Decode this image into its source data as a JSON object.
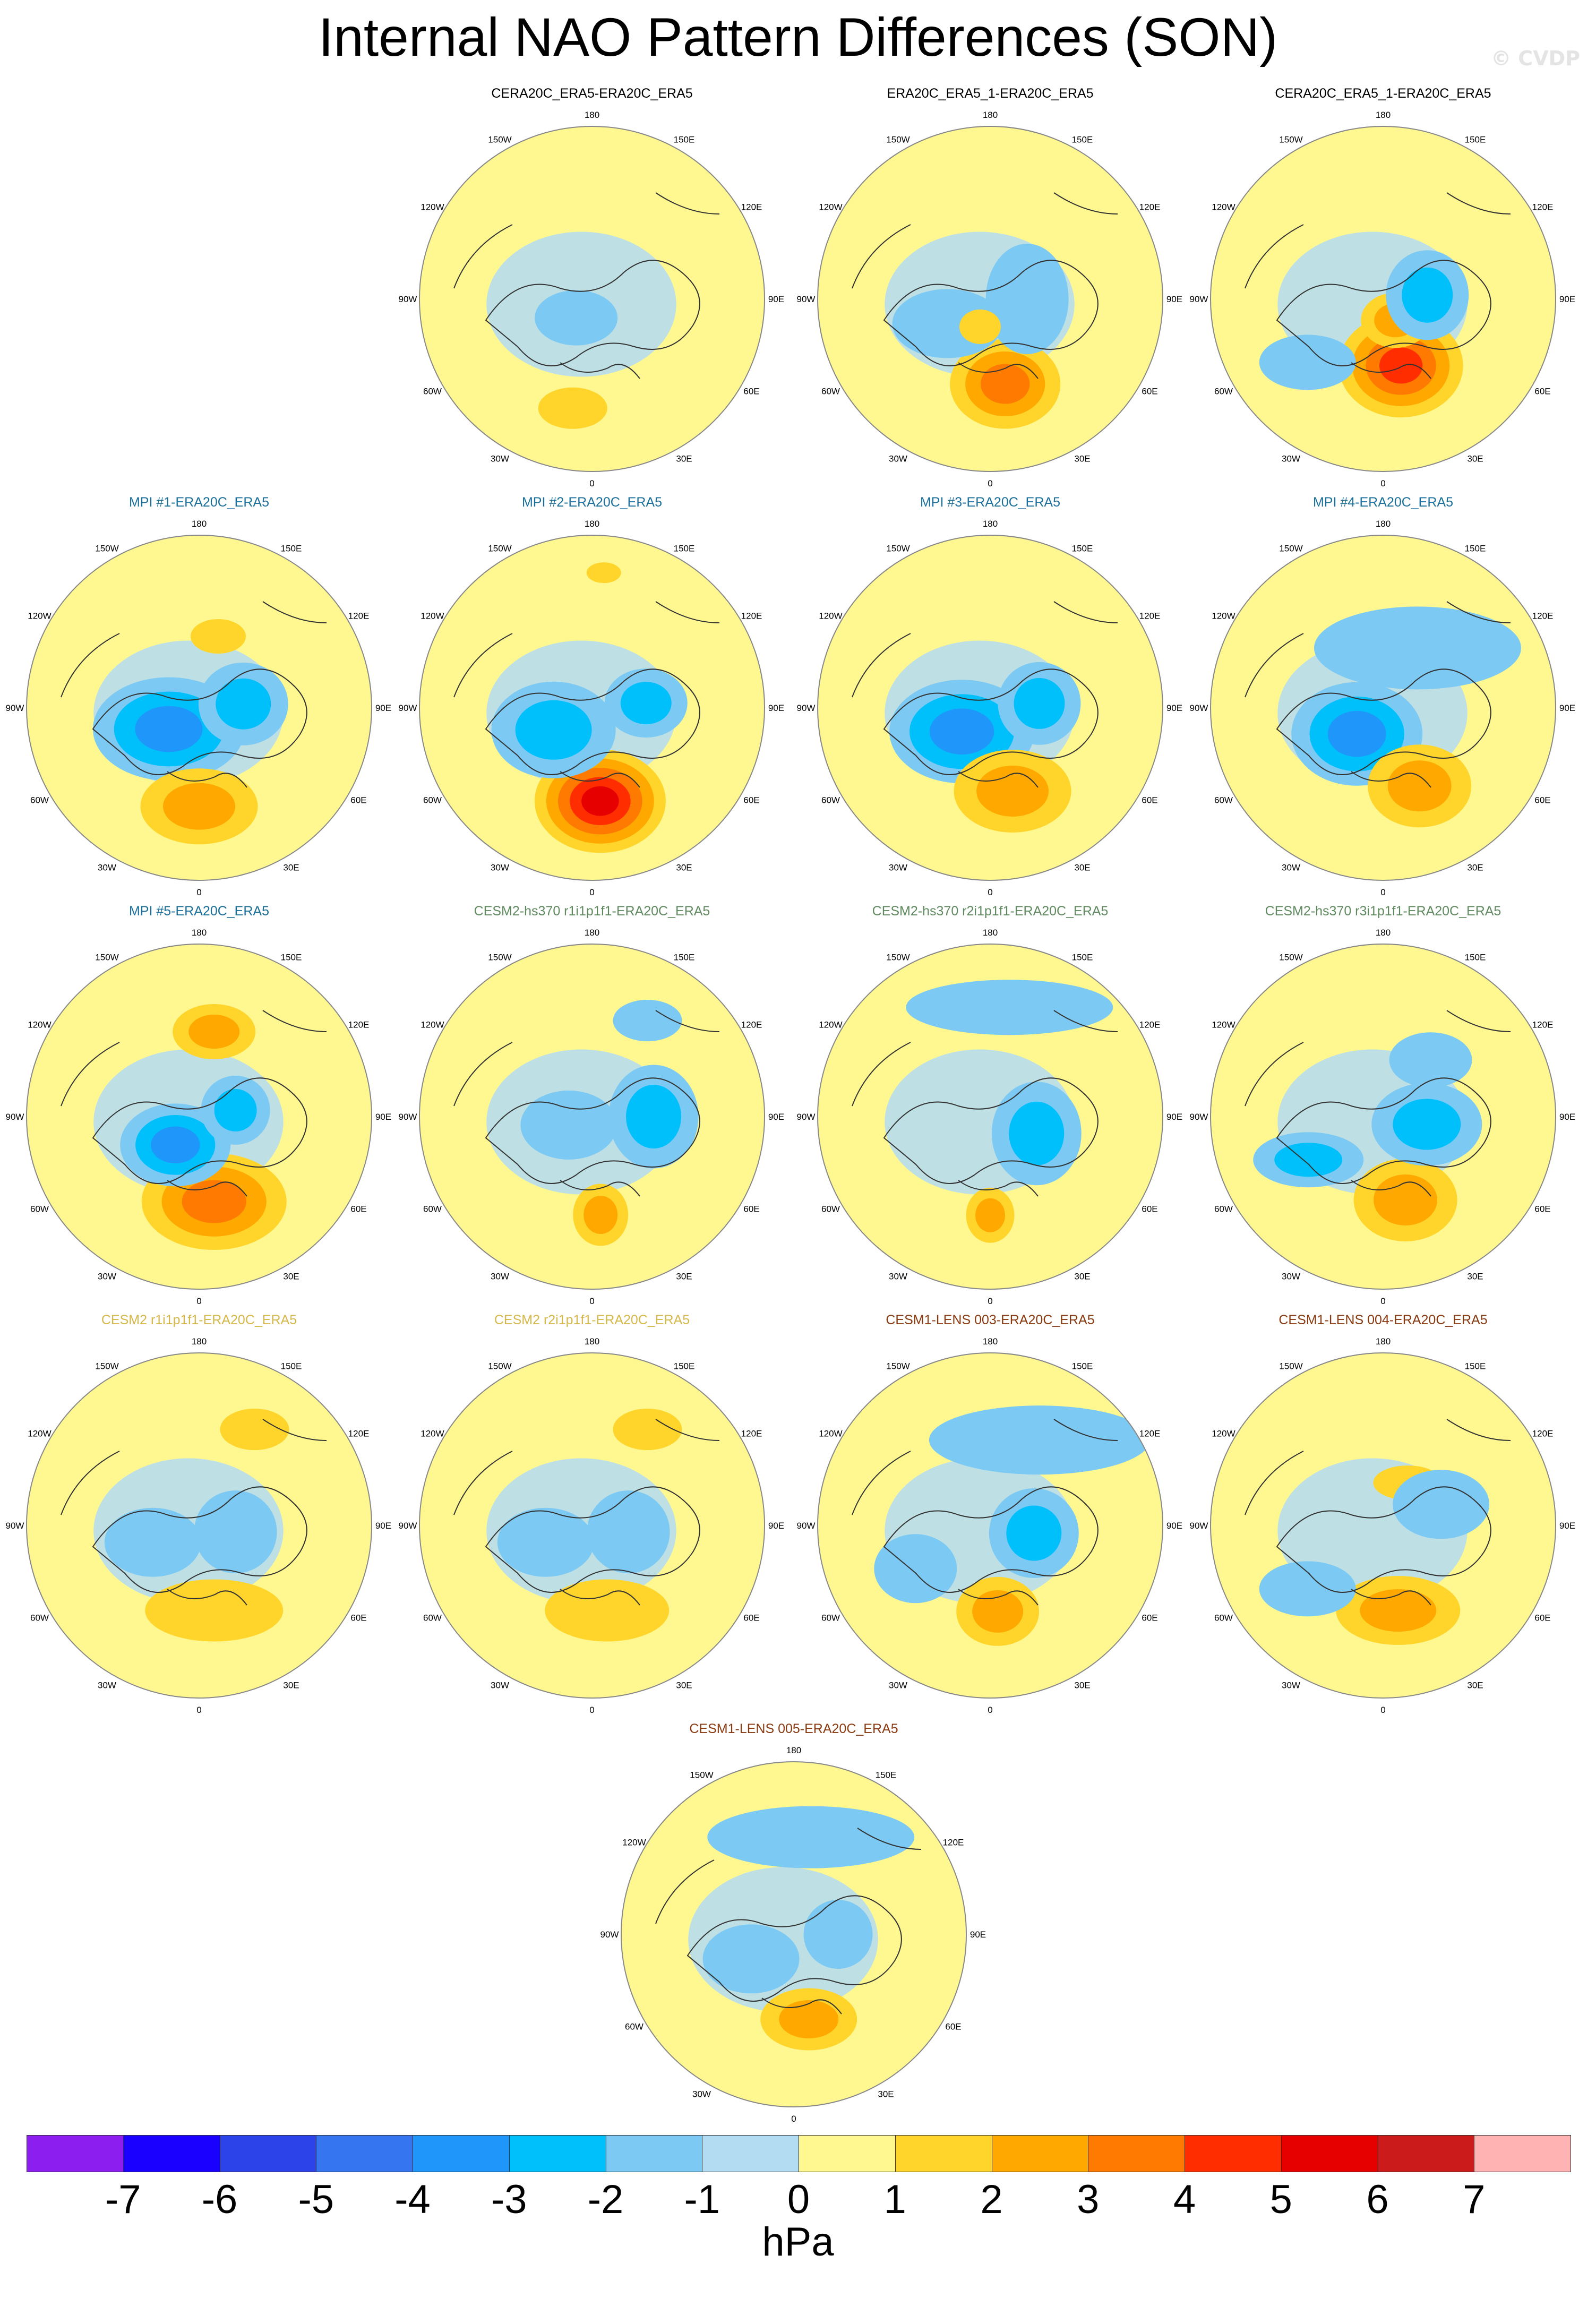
{
  "title": "Internal NAO Pattern Differences (SON)",
  "watermark": "© CVDP",
  "colors": {
    "ocean_fill": "#fff891",
    "near_zero_negative": "#b3dcf3",
    "map_border": "#888888",
    "coast": "#333333",
    "title_black": "#000000",
    "title_mpi": "#1b6f9b",
    "title_cesm2_hs": "#5f8a5f",
    "title_cesm2": "#d6b84a",
    "title_lens": "#8a3a10"
  },
  "longitude_labels": [
    "180",
    "150E",
    "120E",
    "90E",
    "60E",
    "30E",
    "0",
    "30W",
    "60W",
    "90W",
    "120W",
    "150W"
  ],
  "panels": [
    {
      "title": "CERA20C_ERA5-ERA20C_ERA5",
      "title_color": "#000000",
      "anomalies": [
        {
          "lat": 80,
          "lon": -40,
          "w": 0.12,
          "h": 0.08,
          "levels": [
            -1
          ]
        },
        {
          "lat": 45,
          "lon": -10,
          "w": 0.1,
          "h": 0.06,
          "levels": [
            1
          ]
        }
      ]
    },
    {
      "title": "ERA20C_ERA5_1-ERA20C_ERA5",
      "title_color": "#000000",
      "anomalies": [
        {
          "lat": 55,
          "lon": 10,
          "w": 0.16,
          "h": 0.13,
          "levels": [
            1,
            2,
            3
          ]
        },
        {
          "lat": 75,
          "lon": 90,
          "w": 0.12,
          "h": 0.16,
          "levels": [
            -1
          ]
        },
        {
          "lat": 70,
          "lon": -60,
          "w": 0.16,
          "h": 0.1,
          "levels": [
            -1
          ]
        },
        {
          "lat": 78,
          "lon": -20,
          "w": 0.06,
          "h": 0.05,
          "levels": [
            1
          ]
        }
      ]
    },
    {
      "title": "CERA20C_ERA5_1-ERA20C_ERA5",
      "title_color": "#000000",
      "anomalies": [
        {
          "lat": 62,
          "lon": 15,
          "w": 0.18,
          "h": 0.15,
          "levels": [
            1,
            2,
            3,
            4
          ]
        },
        {
          "lat": 80,
          "lon": 30,
          "w": 0.1,
          "h": 0.08,
          "levels": [
            1,
            2
          ]
        },
        {
          "lat": 72,
          "lon": 95,
          "w": 0.12,
          "h": 0.13,
          "levels": [
            -1,
            -2
          ]
        },
        {
          "lat": 50,
          "lon": -50,
          "w": 0.14,
          "h": 0.08,
          "levels": [
            -1
          ]
        }
      ]
    },
    {
      "title": "MPI #1-ERA20C_ERA5",
      "title_color": "#1b6f9b",
      "anomalies": [
        {
          "lat": 75,
          "lon": -55,
          "w": 0.22,
          "h": 0.15,
          "levels": [
            -1,
            -2,
            -3
          ]
        },
        {
          "lat": 50,
          "lon": 0,
          "w": 0.17,
          "h": 0.11,
          "levels": [
            1,
            2
          ]
        },
        {
          "lat": 72,
          "lon": 95,
          "w": 0.13,
          "h": 0.12,
          "levels": [
            -1,
            -2
          ]
        },
        {
          "lat": 60,
          "lon": 165,
          "w": 0.08,
          "h": 0.05,
          "levels": [
            1
          ]
        }
      ]
    },
    {
      "title": "MPI #2-ERA20C_ERA5",
      "title_color": "#1b6f9b",
      "anomalies": [
        {
          "lat": 52,
          "lon": 5,
          "w": 0.19,
          "h": 0.15,
          "levels": [
            1,
            2,
            3,
            4,
            5
          ]
        },
        {
          "lat": 72,
          "lon": -60,
          "w": 0.18,
          "h": 0.14,
          "levels": [
            -1,
            -2
          ]
        },
        {
          "lat": 68,
          "lon": 95,
          "w": 0.12,
          "h": 0.1,
          "levels": [
            -1,
            -2
          ]
        },
        {
          "lat": 35,
          "lon": 175,
          "w": 0.05,
          "h": 0.03,
          "levels": [
            1
          ]
        }
      ]
    },
    {
      "title": "MPI #3-ERA20C_ERA5",
      "title_color": "#1b6f9b",
      "anomalies": [
        {
          "lat": 75,
          "lon": -50,
          "w": 0.21,
          "h": 0.15,
          "levels": [
            -1,
            -2,
            -3
          ]
        },
        {
          "lat": 55,
          "lon": 15,
          "w": 0.17,
          "h": 0.12,
          "levels": [
            1,
            2
          ]
        },
        {
          "lat": 70,
          "lon": 95,
          "w": 0.12,
          "h": 0.12,
          "levels": [
            -1,
            -2
          ]
        }
      ]
    },
    {
      "title": "MPI #4-ERA20C_ERA5",
      "title_color": "#1b6f9b",
      "anomalies": [
        {
          "lat": 75,
          "lon": -45,
          "w": 0.19,
          "h": 0.15,
          "levels": [
            -1,
            -2,
            -3
          ]
        },
        {
          "lat": 55,
          "lon": 25,
          "w": 0.15,
          "h": 0.12,
          "levels": [
            1,
            2
          ]
        },
        {
          "lat": 62,
          "lon": 150,
          "w": 0.3,
          "h": 0.12,
          "levels": [
            -1
          ]
        }
      ]
    },
    {
      "title": "MPI #5-ERA20C_ERA5",
      "title_color": "#1b6f9b",
      "anomalies": [
        {
          "lat": 55,
          "lon": 10,
          "w": 0.21,
          "h": 0.14,
          "levels": [
            1,
            2,
            3
          ]
        },
        {
          "lat": 75,
          "lon": -40,
          "w": 0.16,
          "h": 0.12,
          "levels": [
            -1,
            -2,
            -3
          ]
        },
        {
          "lat": 55,
          "lon": 170,
          "w": 0.12,
          "h": 0.08,
          "levels": [
            1,
            2
          ]
        },
        {
          "lat": 75,
          "lon": 100,
          "w": 0.1,
          "h": 0.1,
          "levels": [
            -1,
            -2
          ]
        }
      ]
    },
    {
      "title": "CESM2-hs370 r1i1p1f1-ERA20C_ERA5",
      "title_color": "#5f8a5f",
      "anomalies": [
        {
          "lat": 65,
          "lon": 90,
          "w": 0.13,
          "h": 0.15,
          "levels": [
            -1,
            -2
          ]
        },
        {
          "lat": 50,
          "lon": 5,
          "w": 0.08,
          "h": 0.09,
          "levels": [
            1,
            2
          ]
        },
        {
          "lat": 80,
          "lon": -70,
          "w": 0.14,
          "h": 0.1,
          "levels": [
            -1
          ]
        },
        {
          "lat": 45,
          "lon": 150,
          "w": 0.1,
          "h": 0.06,
          "levels": [
            -1
          ]
        }
      ]
    },
    {
      "title": "CESM2-hs370 r2i1p1f1-ERA20C_ERA5",
      "title_color": "#5f8a5f",
      "anomalies": [
        {
          "lat": 70,
          "lon": 70,
          "w": 0.13,
          "h": 0.15,
          "levels": [
            -1,
            -2
          ]
        },
        {
          "lat": 50,
          "lon": 0,
          "w": 0.07,
          "h": 0.08,
          "levels": [
            1,
            2
          ]
        },
        {
          "lat": 45,
          "lon": 170,
          "w": 0.3,
          "h": 0.08,
          "levels": [
            -1
          ]
        }
      ]
    },
    {
      "title": "CESM2-hs370 r3i1p1f1-ERA20C_ERA5",
      "title_color": "#5f8a5f",
      "anomalies": [
        {
          "lat": 55,
          "lon": 15,
          "w": 0.15,
          "h": 0.12,
          "levels": [
            1,
            2
          ]
        },
        {
          "lat": 72,
          "lon": 80,
          "w": 0.16,
          "h": 0.12,
          "levels": [
            -1,
            -2
          ]
        },
        {
          "lat": 55,
          "lon": -60,
          "w": 0.16,
          "h": 0.08,
          "levels": [
            -1,
            -2
          ]
        },
        {
          "lat": 60,
          "lon": 140,
          "w": 0.12,
          "h": 0.08,
          "levels": [
            -1
          ]
        }
      ]
    },
    {
      "title": "CESM2 r1i1p1f1-ERA20C_ERA5",
      "title_color": "#d6b84a",
      "anomalies": [
        {
          "lat": 55,
          "lon": 10,
          "w": 0.2,
          "h": 0.09,
          "levels": [
            1
          ]
        },
        {
          "lat": 45,
          "lon": 150,
          "w": 0.1,
          "h": 0.06,
          "levels": [
            1
          ]
        },
        {
          "lat": 70,
          "lon": -70,
          "w": 0.14,
          "h": 0.1,
          "levels": [
            -1
          ]
        },
        {
          "lat": 75,
          "lon": 80,
          "w": 0.12,
          "h": 0.12,
          "levels": [
            -1
          ]
        }
      ]
    },
    {
      "title": "CESM2 r2i1p1f1-ERA20C_ERA5",
      "title_color": "#d6b84a",
      "anomalies": [
        {
          "lat": 55,
          "lon": 10,
          "w": 0.18,
          "h": 0.09,
          "levels": [
            1
          ]
        },
        {
          "lat": 45,
          "lon": 150,
          "w": 0.1,
          "h": 0.06,
          "levels": [
            1
          ]
        },
        {
          "lat": 70,
          "lon": -70,
          "w": 0.14,
          "h": 0.1,
          "levels": [
            -1
          ]
        },
        {
          "lat": 75,
          "lon": 80,
          "w": 0.12,
          "h": 0.12,
          "levels": [
            -1
          ]
        }
      ]
    },
    {
      "title": "CESM1-LENS 003-ERA20C_ERA5",
      "title_color": "#8a3a10",
      "anomalies": [
        {
          "lat": 55,
          "lon": 5,
          "w": 0.12,
          "h": 0.1,
          "levels": [
            1,
            2
          ]
        },
        {
          "lat": 72,
          "lon": 80,
          "w": 0.13,
          "h": 0.13,
          "levels": [
            -1,
            -2
          ]
        },
        {
          "lat": 55,
          "lon": -60,
          "w": 0.12,
          "h": 0.1,
          "levels": [
            -1
          ]
        },
        {
          "lat": 50,
          "lon": 150,
          "w": 0.32,
          "h": 0.1,
          "levels": [
            -1
          ]
        }
      ]
    },
    {
      "title": "CESM1-LENS 004-ERA20C_ERA5",
      "title_color": "#8a3a10",
      "anomalies": [
        {
          "lat": 55,
          "lon": 10,
          "w": 0.18,
          "h": 0.1,
          "levels": [
            1,
            2
          ]
        },
        {
          "lat": 50,
          "lon": -50,
          "w": 0.14,
          "h": 0.08,
          "levels": [
            -1
          ]
        },
        {
          "lat": 70,
          "lon": 150,
          "w": 0.1,
          "h": 0.05,
          "levels": [
            1
          ]
        },
        {
          "lat": 65,
          "lon": 110,
          "w": 0.14,
          "h": 0.1,
          "levels": [
            -1
          ]
        }
      ]
    },
    {
      "title": "CESM1-LENS 005-ERA20C_ERA5",
      "title_color": "#8a3a10",
      "anomalies": [
        {
          "lat": 55,
          "lon": 10,
          "w": 0.14,
          "h": 0.09,
          "levels": [
            1,
            2
          ]
        },
        {
          "lat": 50,
          "lon": 170,
          "w": 0.3,
          "h": 0.09,
          "levels": [
            -1
          ]
        },
        {
          "lat": 70,
          "lon": -60,
          "w": 0.14,
          "h": 0.1,
          "levels": [
            -1
          ]
        },
        {
          "lat": 72,
          "lon": 90,
          "w": 0.1,
          "h": 0.1,
          "levels": [
            -1
          ]
        }
      ]
    }
  ],
  "colorbar": {
    "colors": [
      "#8c1ff0",
      "#1a00ff",
      "#2b43e8",
      "#3575ef",
      "#1f96fa",
      "#00c0fc",
      "#7cc9f3",
      "#b3dcf3",
      "#fff891",
      "#ffd52b",
      "#ffa800",
      "#ff7a00",
      "#ff2d00",
      "#e60000",
      "#cc1b1b",
      "#ffb3b3"
    ],
    "labels": [
      "-7",
      "-6",
      "-5",
      "-4",
      "-3",
      "-2",
      "-1",
      "0",
      "1",
      "2",
      "3",
      "4",
      "5",
      "6",
      "7"
    ],
    "units": "hPa"
  }
}
